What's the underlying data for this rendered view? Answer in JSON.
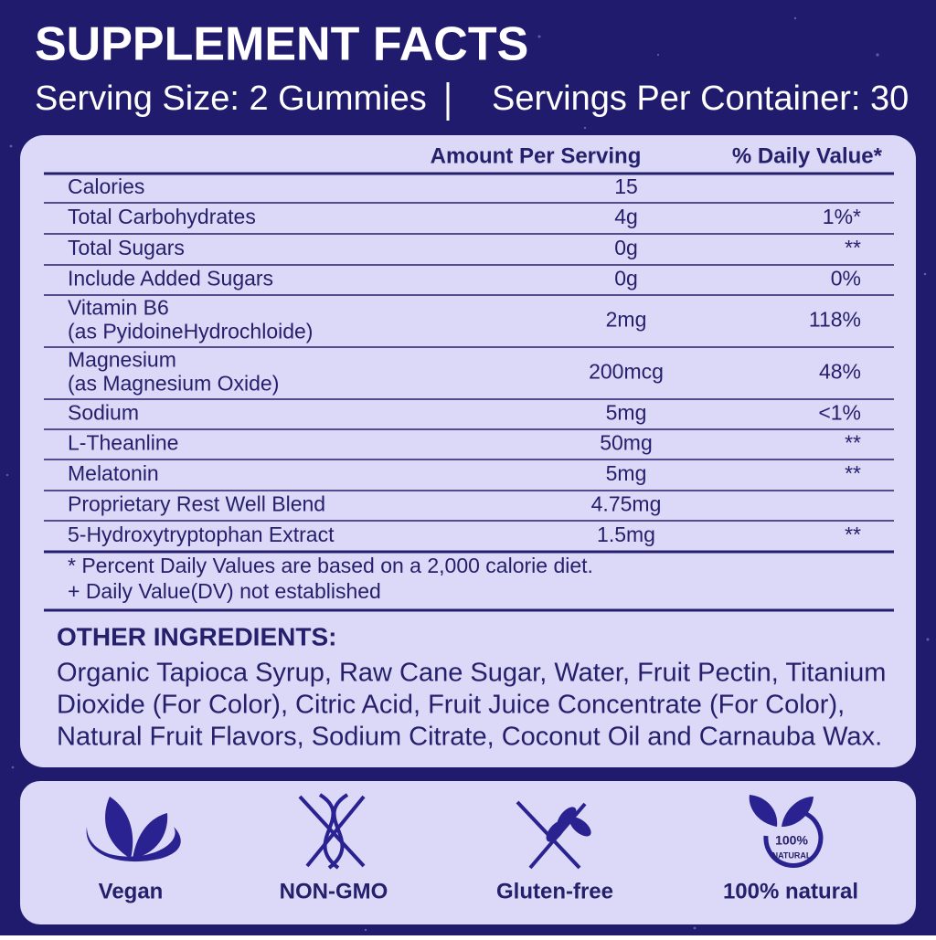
{
  "header": {
    "title": "SUPPLEMENT FACTS",
    "serving_size": "Serving Size: 2 Gummies",
    "servings_per_container": "Servings Per Container: 30"
  },
  "table": {
    "columns": [
      "Amount Per Serving",
      "% Daily Value*"
    ],
    "rows": [
      {
        "name": "Calories",
        "amount": "15"
      },
      {
        "name": "Total Carbohydrates",
        "amount": "4g",
        "dv": "1%*"
      },
      {
        "name": "Total Sugars",
        "amount": "0g",
        "dv": "**"
      },
      {
        "name": "Include Added Sugars",
        "amount": "0g",
        "dv": "0%"
      },
      {
        "name": "Vitamin B6",
        "note": "(as PyidoineHydrochloide)",
        "amount": "2mg",
        "dv": "118%"
      },
      {
        "name": "Magnesium",
        "note": "(as Magnesium Oxide)",
        "amount": "200mcg",
        "dv": "48%"
      },
      {
        "name": "Sodium",
        "amount": "5mg",
        "dv": "<1%"
      },
      {
        "name": "L-Theanline",
        "amount": "50mg",
        "dv": "**"
      },
      {
        "name": "Melatonin",
        "amount": "5mg",
        "dv": "**"
      },
      {
        "name": "Proprietary Rest Well Blend",
        "amount": "4.75mg"
      },
      {
        "name": "5-Hydroxytryptophan Extract",
        "amount": "1.5mg",
        "dv": "**"
      }
    ],
    "footnotes": [
      "* Percent Daily Values are based on a 2,000 calorie diet.",
      "+ Daily Value(DV) not established"
    ]
  },
  "other_ingredients": {
    "title": "OTHER INGREDIENTS:",
    "lines": [
      "Organic Tapioca Syrup, Raw Cane Sugar, Water, Fruit Pectin, Titanium",
      "Dioxide (For Color), Citric Acid, Fruit Juice Concentrate (For Color),",
      "Natural Fruit Flavors, Sodium Citrate, Coconut Oil and Carnauba Wax."
    ]
  },
  "badges": [
    {
      "label": "Vegan"
    },
    {
      "label": "NON-GMO"
    },
    {
      "label": "Gluten-free"
    },
    {
      "label": "100% natural",
      "icon_text": [
        "100%",
        "NATURAL"
      ]
    }
  ]
}
